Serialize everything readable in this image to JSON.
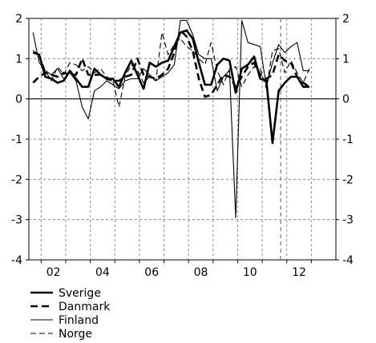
{
  "chart_data": {
    "type": "line",
    "title": "",
    "xlabel": "",
    "ylabel": "",
    "xlim": [
      2001.5,
      2014.0
    ],
    "ylim": [
      -4,
      2
    ],
    "x_tick_labels": [
      {
        "x": 2002,
        "label": "02"
      },
      {
        "x": 2004,
        "label": "04"
      },
      {
        "x": 2006,
        "label": "06"
      },
      {
        "x": 2008,
        "label": "08"
      },
      {
        "x": 2010,
        "label": "10"
      },
      {
        "x": 2012,
        "label": "12"
      }
    ],
    "y_ticks": [
      2,
      1,
      0,
      -1,
      -2,
      -3,
      -4
    ],
    "y_tick_labels": [
      "2",
      "1",
      "0",
      "-1",
      "-2",
      "-3",
      "-4"
    ],
    "grid": true,
    "legend_position": "below-left",
    "forecast_divider_x": 2011.75,
    "series": [
      {
        "name": "Sverige",
        "style": "thick-solid",
        "x": [
          2001.67,
          2001.92,
          2002.17,
          2002.42,
          2002.67,
          2002.92,
          2003.17,
          2003.42,
          2003.67,
          2003.92,
          2004.17,
          2004.42,
          2004.67,
          2004.92,
          2005.17,
          2005.42,
          2005.67,
          2005.92,
          2006.17,
          2006.42,
          2006.67,
          2006.92,
          2007.17,
          2007.42,
          2007.67,
          2007.92,
          2008.17,
          2008.42,
          2008.67,
          2008.92,
          2009.17,
          2009.42,
          2009.67,
          2009.92,
          2010.17,
          2010.42,
          2010.67,
          2010.92,
          2011.17,
          2011.42,
          2011.67,
          2011.92,
          2012.17,
          2012.42,
          2012.67,
          2012.92
        ],
        "values": [
          1.15,
          1.1,
          0.55,
          0.5,
          0.4,
          0.45,
          0.7,
          0.5,
          0.3,
          0.3,
          0.75,
          0.6,
          0.5,
          0.5,
          0.3,
          0.65,
          0.95,
          0.6,
          0.25,
          0.9,
          0.8,
          0.9,
          0.95,
          1.3,
          1.65,
          1.7,
          1.5,
          0.9,
          0.35,
          0.35,
          0.85,
          1.0,
          0.95,
          0.15,
          0.75,
          0.85,
          1.05,
          0.5,
          0.45,
          -1.1,
          0.2,
          0.4,
          0.55,
          0.55,
          0.3,
          0.3
        ]
      },
      {
        "name": "Danmark",
        "style": "thick-dashed",
        "x": [
          2001.67,
          2001.92,
          2002.17,
          2002.42,
          2002.67,
          2002.92,
          2003.17,
          2003.42,
          2003.67,
          2003.92,
          2004.17,
          2004.42,
          2004.67,
          2004.92,
          2005.17,
          2005.42,
          2005.67,
          2005.92,
          2006.17,
          2006.42,
          2006.67,
          2006.92,
          2007.17,
          2007.42,
          2007.67,
          2007.92,
          2008.17,
          2008.42,
          2008.67,
          2008.92,
          2009.17,
          2009.42,
          2009.67,
          2009.92,
          2010.17,
          2010.42,
          2010.67,
          2010.92,
          2011.17,
          2011.42,
          2011.67,
          2011.92,
          2012.17,
          2012.42,
          2012.67,
          2012.92
        ],
        "values": [
          0.4,
          0.55,
          0.65,
          0.6,
          0.55,
          0.65,
          0.6,
          0.6,
          1.0,
          0.6,
          0.6,
          0.6,
          0.5,
          0.45,
          0.45,
          0.55,
          0.6,
          1.0,
          0.6,
          0.55,
          0.5,
          0.6,
          0.75,
          1.15,
          1.7,
          1.55,
          1.2,
          0.5,
          0.05,
          0.1,
          0.35,
          0.6,
          0.55,
          0.3,
          0.55,
          0.8,
          0.9,
          0.6,
          0.5,
          0.6,
          1.1,
          0.95,
          0.9,
          0.55,
          0.4,
          0.3
        ]
      },
      {
        "name": "Finland",
        "style": "thin-solid",
        "x": [
          2001.67,
          2001.92,
          2002.17,
          2002.42,
          2002.67,
          2002.92,
          2003.17,
          2003.42,
          2003.67,
          2003.92,
          2004.17,
          2004.42,
          2004.67,
          2004.92,
          2005.17,
          2005.42,
          2005.67,
          2005.92,
          2006.17,
          2006.42,
          2006.67,
          2006.92,
          2007.17,
          2007.42,
          2007.67,
          2007.92,
          2008.17,
          2008.42,
          2008.67,
          2008.92,
          2009.17,
          2009.42,
          2009.67,
          2009.92,
          2010.17,
          2010.42,
          2010.67,
          2010.92,
          2011.17,
          2011.42,
          2011.67,
          2011.92,
          2012.17,
          2012.42,
          2012.67,
          2012.92
        ],
        "values": [
          1.65,
          0.9,
          0.7,
          0.6,
          0.75,
          0.5,
          0.65,
          0.45,
          -0.2,
          -0.5,
          0.2,
          0.3,
          0.45,
          0.35,
          0.25,
          0.45,
          0.5,
          0.5,
          0.75,
          0.6,
          0.45,
          0.55,
          0.65,
          0.85,
          1.95,
          1.95,
          1.6,
          1.1,
          1.0,
          1.0,
          0.2,
          0.55,
          0.7,
          -2.95,
          1.95,
          1.4,
          1.35,
          1.3,
          0.3,
          0.9,
          1.35,
          1.15,
          1.3,
          1.4,
          0.7,
          0.7
        ]
      },
      {
        "name": "Norge",
        "style": "thin-dashed",
        "x": [
          2001.67,
          2001.92,
          2002.17,
          2002.42,
          2002.67,
          2002.92,
          2003.17,
          2003.42,
          2003.67,
          2003.92,
          2004.17,
          2004.42,
          2004.67,
          2004.92,
          2005.17,
          2005.42,
          2005.67,
          2005.92,
          2006.17,
          2006.42,
          2006.67,
          2006.92,
          2007.17,
          2007.42,
          2007.67,
          2007.92,
          2008.17,
          2008.42,
          2008.67,
          2008.92,
          2009.17,
          2009.42,
          2009.67,
          2009.92,
          2010.17,
          2010.42,
          2010.67,
          2010.92,
          2011.17,
          2011.42,
          2011.67,
          2011.92,
          2012.17,
          2012.42,
          2012.67,
          2012.92
        ],
        "values": [
          1.2,
          1.1,
          0.7,
          0.45,
          0.8,
          0.6,
          0.9,
          0.85,
          0.7,
          0.8,
          0.65,
          0.75,
          0.55,
          0.45,
          -0.2,
          0.55,
          0.85,
          0.7,
          0.4,
          0.55,
          0.45,
          1.65,
          1.1,
          1.35,
          1.5,
          1.3,
          1.2,
          1.0,
          0.85,
          1.4,
          0.7,
          0.35,
          0.75,
          0.8,
          0.3,
          0.6,
          0.8,
          0.75,
          0.25,
          1.2,
          1.25,
          0.65,
          0.95,
          0.65,
          0.4,
          0.75
        ]
      }
    ]
  }
}
